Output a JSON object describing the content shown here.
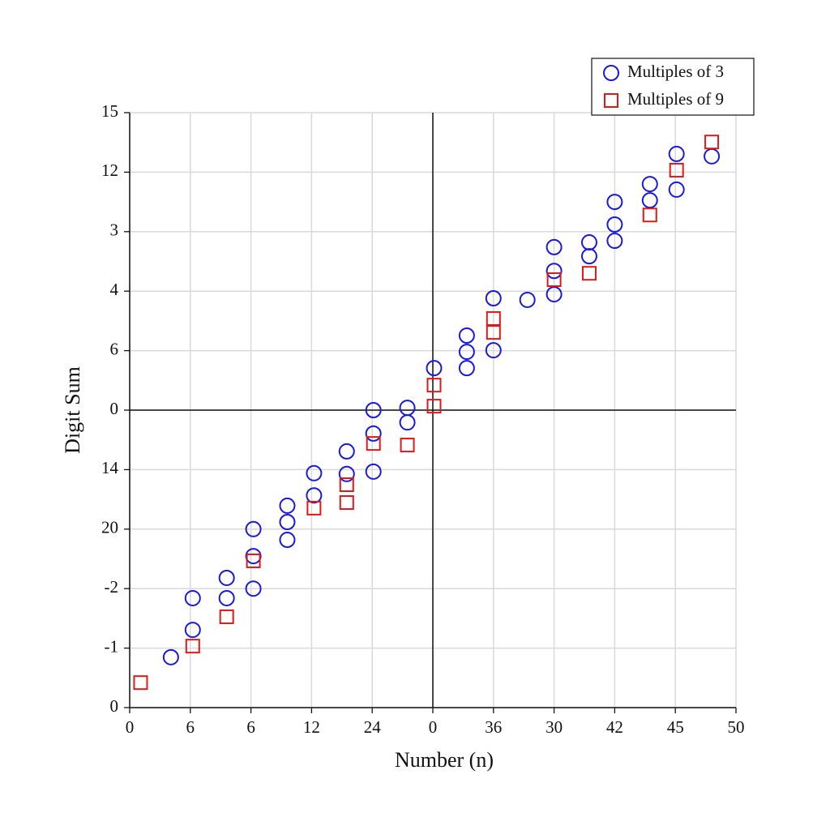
{
  "chart_data": {
    "type": "scatter",
    "xlabel": "Number (n)",
    "ylabel": "Digit Sum",
    "xlim": [
      0,
      50
    ],
    "xticks": [
      0,
      {
        "value": 5,
        "label": "6"
      },
      {
        "value": 10,
        "label": "6"
      },
      {
        "value": 15,
        "label": "12"
      },
      {
        "value": 20,
        "label": "24"
      },
      {
        "value": 25,
        "label": "0"
      },
      {
        "value": 30,
        "label": "36"
      },
      {
        "value": 35,
        "label": "30"
      },
      {
        "value": 40,
        "label": "42"
      },
      {
        "value": 45,
        "label": "45"
      },
      50
    ],
    "ylim": [
      0,
      15
    ],
    "yticks": [
      0,
      {
        "value": 1.5,
        "label": "-1"
      },
      {
        "value": 3,
        "label": "-2"
      },
      {
        "value": 4.5,
        "label": "20"
      },
      {
        "value": 6,
        "label": "14"
      },
      {
        "value": 7.5,
        "label": "0"
      },
      {
        "value": 9,
        "label": "6"
      },
      {
        "value": 10.5,
        "label": "4"
      },
      {
        "value": 12,
        "label": "3"
      },
      {
        "value": 13.5,
        "label": "12"
      },
      15
    ],
    "grid": true,
    "center_lines": {
      "x": 25,
      "y": 7.5
    },
    "legend": "upper right",
    "series": [
      {
        "name": "Multiples of 3",
        "color": "#1a1adc",
        "marker": "circle",
        "x": [
          3.4,
          5.2,
          5.2,
          8.0,
          8.0,
          10.2,
          10.2,
          10.2,
          13.0,
          13.0,
          13.0,
          15.2,
          15.2,
          17.9,
          17.9,
          20.1,
          20.1,
          20.1,
          22.9,
          22.9,
          25.1,
          27.8,
          27.8,
          27.8,
          30.0,
          30.0,
          32.8,
          35.0,
          35.0,
          35.0,
          37.9,
          37.9,
          40.0,
          40.0,
          40.0,
          42.9,
          42.9,
          45.1,
          45.1,
          48.0
        ],
        "values": [
          1.27,
          2.76,
          1.96,
          3.27,
          2.76,
          4.5,
          3.82,
          3.0,
          5.09,
          4.68,
          4.23,
          5.91,
          5.35,
          6.46,
          5.89,
          7.5,
          6.91,
          5.95,
          7.56,
          7.19,
          8.56,
          9.38,
          8.97,
          8.56,
          10.32,
          9.01,
          10.28,
          11.61,
          11.01,
          10.42,
          11.73,
          11.38,
          12.75,
          12.18,
          11.77,
          13.2,
          12.79,
          13.96,
          13.06,
          13.9
        ]
      },
      {
        "name": "Multiples of 9",
        "color": "#dc1a1a",
        "marker": "square",
        "x": [
          0.9,
          5.2,
          8.0,
          10.2,
          15.2,
          17.9,
          17.9,
          20.1,
          22.9,
          25.1,
          25.1,
          30.0,
          30.0,
          35.0,
          37.9,
          42.9,
          45.1,
          48.0
        ],
        "values": [
          0.63,
          1.55,
          2.29,
          3.7,
          5.03,
          5.62,
          5.17,
          6.66,
          6.62,
          8.13,
          7.6,
          9.81,
          9.46,
          10.79,
          10.95,
          12.42,
          13.55,
          14.26
        ]
      }
    ]
  }
}
